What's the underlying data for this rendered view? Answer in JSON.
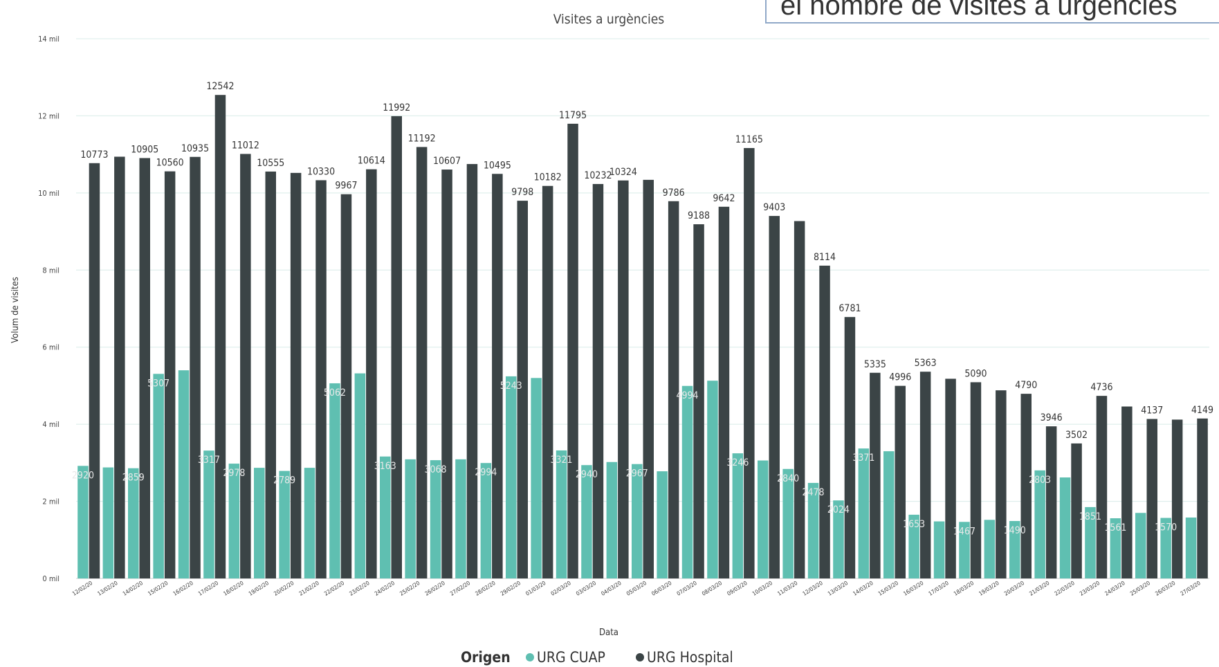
{
  "callout": {
    "text": "el nombre de visites a urgències"
  },
  "chart_data": {
    "type": "bar",
    "title": "Visites a urgències",
    "xlabel": "Data",
    "ylabel": "Volum de visites",
    "ylim": [
      0,
      14000
    ],
    "yticks": [
      "0 mil",
      "2 mil",
      "4 mil",
      "6 mil",
      "8 mil",
      "10 mil",
      "12 mil",
      "14 mil"
    ],
    "grid": true,
    "legend": {
      "title": "Origen",
      "position": "bottom"
    },
    "categories": [
      "12/02/20",
      "13/02/20",
      "14/02/20",
      "15/02/20",
      "16/02/20",
      "17/02/20",
      "18/02/20",
      "19/02/20",
      "20/02/20",
      "21/02/20",
      "22/02/20",
      "23/02/20",
      "24/02/20",
      "25/02/20",
      "26/02/20",
      "27/02/20",
      "28/02/20",
      "29/02/20",
      "01/03/20",
      "02/03/20",
      "03/03/20",
      "04/03/20",
      "05/03/20",
      "06/03/20",
      "07/03/20",
      "08/03/20",
      "09/03/20",
      "10/03/20",
      "11/03/20",
      "12/03/20",
      "13/03/20",
      "14/03/20",
      "15/03/20",
      "16/03/20",
      "17/03/20",
      "18/03/20",
      "19/03/20",
      "20/03/20",
      "21/03/20",
      "22/03/20",
      "23/03/20",
      "24/03/20",
      "25/03/20",
      "26/03/20",
      "27/03/20"
    ],
    "series": [
      {
        "name": "URG CUAP",
        "color": "#5fbfb1",
        "values": [
          2920,
          2880,
          2859,
          5307,
          5400,
          3317,
          2978,
          2870,
          2789,
          2870,
          5062,
          5320,
          3163,
          3090,
          3068,
          3090,
          2994,
          5243,
          5200,
          3321,
          2940,
          3020,
          2967,
          2780,
          4994,
          5130,
          3246,
          3060,
          2840,
          2478,
          2024,
          3371,
          3300,
          1653,
          1480,
          1467,
          1520,
          1490,
          2803,
          2620,
          1851,
          1561,
          1700,
          1570,
          1580
        ],
        "labels": [
          "2920",
          "",
          "2859",
          "5307",
          "",
          "3317",
          "2978",
          "",
          "2789",
          "",
          "5062",
          "",
          "3163",
          "",
          "3068",
          "",
          "2994",
          "5243",
          "",
          "3321",
          "2940",
          "",
          "2967",
          "",
          "4994",
          "",
          "3246",
          "",
          "2840",
          "2478",
          "2024",
          "3371",
          "",
          "1653",
          "",
          "1467",
          "",
          "1490",
          "2803",
          "",
          "1851",
          "1561",
          "",
          "1570",
          ""
        ]
      },
      {
        "name": "URG Hospital",
        "color": "#3b4446",
        "values": [
          10773,
          10940,
          10905,
          10560,
          10935,
          12542,
          11012,
          10555,
          10520,
          10330,
          9967,
          10614,
          11992,
          11192,
          10607,
          10750,
          10495,
          9798,
          10182,
          11795,
          10232,
          10324,
          10340,
          9786,
          9188,
          9642,
          11165,
          9403,
          9270,
          8114,
          6781,
          5335,
          4996,
          5363,
          5180,
          5090,
          4880,
          4790,
          3946,
          3502,
          4736,
          4460,
          4137,
          4120,
          4149
        ],
        "labels": [
          "10773",
          "",
          "10905",
          "10560",
          "10935",
          "12542",
          "11012",
          "10555",
          "",
          "10330",
          "9967",
          "10614",
          "11992",
          "11192",
          "10607",
          "",
          "10495",
          "9798",
          "10182",
          "11795",
          "10232",
          "10324",
          "",
          "9786",
          "9188",
          "9642",
          "11165",
          "9403",
          "",
          "8114",
          "6781",
          "5335",
          "4996",
          "5363",
          "",
          "5090",
          "",
          "4790",
          "3946",
          "3502",
          "4736",
          "",
          "4137",
          "",
          "4149"
        ]
      }
    ]
  }
}
